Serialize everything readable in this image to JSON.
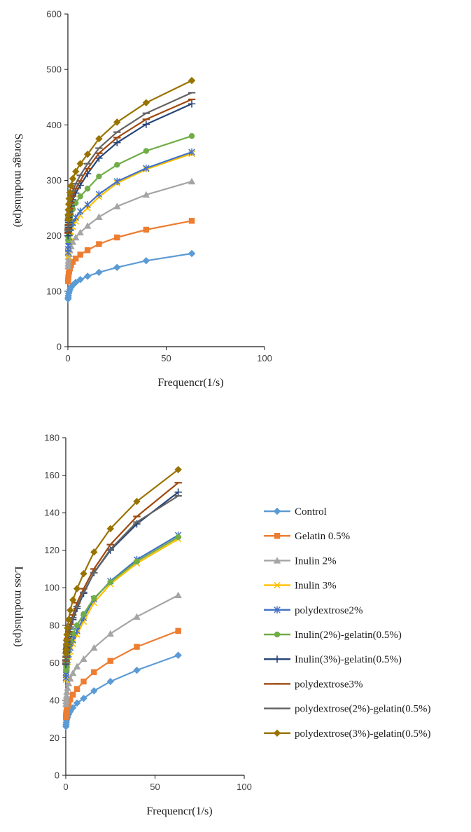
{
  "chart_data": [
    {
      "type": "scatter",
      "xlabel": "Frequencr(1/s)",
      "ylabel": "Storage modulus(pa)",
      "xlim": [
        0,
        100
      ],
      "ylim": [
        0,
        600
      ],
      "xticks": [
        "0",
        "50",
        "100"
      ],
      "yticks": [
        "0",
        "100",
        "200",
        "300",
        "400",
        "500",
        "600"
      ],
      "grid": false,
      "legend": "none",
      "x": [
        0.1,
        0.16,
        0.25,
        0.4,
        0.63,
        1,
        1.6,
        2.5,
        4,
        6.3,
        10,
        15.8,
        25,
        39.8,
        63
      ],
      "series": [
        {
          "name": "Control",
          "values": [
            86,
            89,
            92,
            96,
            99,
            103,
            107,
            111,
            116,
            121,
            127,
            134,
            143,
            155,
            168
          ]
        },
        {
          "name": "Gelatin 0.5%",
          "values": [
            118,
            122,
            126,
            131,
            136,
            141,
            147,
            153,
            159,
            166,
            174,
            185,
            197,
            211,
            227
          ]
        },
        {
          "name": "Inulin 2%",
          "values": [
            145,
            150,
            155,
            161,
            167,
            174,
            181,
            189,
            197,
            206,
            218,
            234,
            253,
            274,
            298
          ]
        },
        {
          "name": "Inulin 3%",
          "values": [
            163,
            169,
            175,
            182,
            190,
            198,
            207,
            216,
            226,
            237,
            250,
            270,
            295,
            320,
            348
          ]
        },
        {
          "name": "polydextrose2%",
          "values": [
            170,
            176,
            182,
            189,
            197,
            205,
            214,
            223,
            233,
            244,
            256,
            275,
            298,
            322,
            351
          ]
        },
        {
          "name": "Inulin(2%)-gelatin(0.5%)",
          "values": [
            192,
            198,
            205,
            212,
            220,
            229,
            238,
            248,
            259,
            271,
            285,
            307,
            328,
            353,
            380
          ]
        },
        {
          "name": "Inulin(3%)-gelatin(0.5%)",
          "values": [
            200,
            207,
            215,
            224,
            233,
            243,
            254,
            265,
            277,
            291,
            312,
            340,
            368,
            401,
            438
          ]
        },
        {
          "name": "polydextrose3%",
          "values": [
            205,
            212,
            220,
            229,
            239,
            249,
            260,
            272,
            285,
            299,
            321,
            349,
            377,
            410,
            446
          ]
        },
        {
          "name": "polydextrose(2%)-gelatin(0.5%)",
          "values": [
            210,
            218,
            227,
            236,
            246,
            257,
            269,
            281,
            294,
            309,
            330,
            358,
            387,
            421,
            458
          ]
        },
        {
          "name": "polydextrose(3%)-gelatin(0.5%)",
          "values": [
            230,
            238,
            247,
            257,
            267,
            278,
            290,
            303,
            316,
            330,
            347,
            375,
            405,
            440,
            480
          ]
        }
      ]
    },
    {
      "type": "scatter",
      "xlabel": "Frequencr(1/s)",
      "ylabel": "Loss modulus(pa)",
      "xlim": [
        0,
        100
      ],
      "ylim": [
        0,
        180
      ],
      "xticks": [
        "0",
        "50",
        "100"
      ],
      "yticks": [
        "0",
        "20",
        "40",
        "60",
        "80",
        "100",
        "120",
        "140",
        "160",
        "180"
      ],
      "grid": false,
      "legend": "right",
      "x": [
        0.1,
        0.16,
        0.25,
        0.4,
        0.63,
        1,
        1.6,
        2.5,
        4,
        6.3,
        10,
        15.8,
        25,
        39.8,
        63
      ],
      "series": [
        {
          "name": "Control",
          "values": [
            26,
            27,
            28,
            29,
            30,
            31,
            32.5,
            34,
            36,
            38.5,
            41,
            45,
            50,
            56,
            64
          ]
        },
        {
          "name": "Gelatin 0.5%",
          "values": [
            31,
            32,
            33,
            34,
            35.5,
            37,
            38.5,
            40.5,
            43,
            46,
            50,
            55,
            61,
            68.5,
            77
          ]
        },
        {
          "name": "Inulin 2%",
          "values": [
            38,
            39.5,
            41,
            42.5,
            44.5,
            46.5,
            49,
            51.5,
            54.5,
            58,
            62,
            68,
            75.5,
            84.5,
            96
          ]
        },
        {
          "name": "Inulin 3%",
          "values": [
            51,
            52.5,
            54,
            56,
            58,
            60.5,
            63,
            66,
            70,
            75,
            82,
            92,
            102,
            113,
            126
          ]
        },
        {
          "name": "polydextrose2%",
          "values": [
            52,
            53.5,
            55,
            57,
            59,
            61.5,
            64.5,
            68,
            72,
            77,
            84,
            94,
            103.5,
            115,
            128
          ]
        },
        {
          "name": "Inulin(2%)-gelatin(0.5%)",
          "values": [
            56,
            57.5,
            59,
            61,
            63,
            65.5,
            68.5,
            71.5,
            75.5,
            80,
            86,
            94.5,
            103,
            114,
            127
          ]
        },
        {
          "name": "Inulin(3%)-gelatin(0.5%)",
          "values": [
            59,
            61,
            63,
            65.5,
            68,
            71,
            74,
            78,
            83,
            89,
            97,
            108,
            120,
            134,
            151
          ]
        },
        {
          "name": "polydextrose3%",
          "values": [
            61,
            63,
            65,
            67.5,
            70,
            73,
            76.5,
            80.5,
            85.5,
            92,
            99.5,
            110,
            123,
            138,
            156
          ]
        },
        {
          "name": "polydextrose(2%)-gelatin(0.5%)",
          "values": [
            59.5,
            61.5,
            63.5,
            66,
            68.5,
            71.5,
            75,
            79,
            84,
            90,
            97.5,
            108,
            120.5,
            135,
            149
          ]
        },
        {
          "name": "polydextrose(3%)-gelatin(0.5%)",
          "values": [
            65,
            67,
            69.5,
            72,
            75,
            78.5,
            83,
            88,
            93.5,
            99.5,
            107.5,
            119,
            131.5,
            146,
            163
          ]
        }
      ]
    }
  ],
  "legend_items": [
    {
      "label": "Control",
      "color": "#5B9BD5",
      "marker": "diamond"
    },
    {
      "label": "Gelatin 0.5%",
      "color": "#ED7D31",
      "marker": "square"
    },
    {
      "label": "Inulin 2%",
      "color": "#A5A5A5",
      "marker": "triangle"
    },
    {
      "label": "Inulin 3%",
      "color": "#FFC000",
      "marker": "x"
    },
    {
      "label": "polydextrose2%",
      "color": "#4472C4",
      "marker": "star"
    },
    {
      "label": "Inulin(2%)-gelatin(0.5%)",
      "color": "#70AD47",
      "marker": "circle"
    },
    {
      "label": "Inulin(3%)-gelatin(0.5%)",
      "color": "#264478",
      "marker": "plus"
    },
    {
      "label": "polydextrose3%",
      "color": "#9E480E",
      "marker": "dash"
    },
    {
      "label": "polydextrose(2%)-gelatin(0.5%)",
      "color": "#636363",
      "marker": "dash"
    },
    {
      "label": "polydextrose(3%)-gelatin(0.5%)",
      "color": "#997300",
      "marker": "diamond"
    }
  ]
}
